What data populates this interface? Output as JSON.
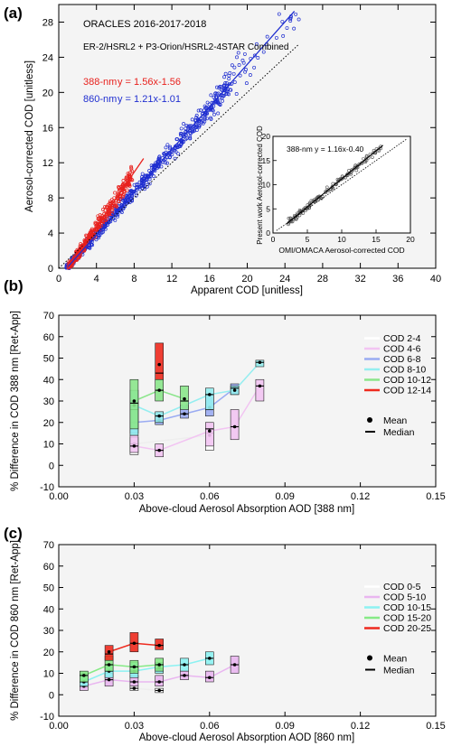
{
  "chart_data": [
    {
      "panel_label": "(a)",
      "type": "scatter",
      "title": "ORACLES 2016-2017-2018",
      "subtitle": "ER-2/HSRL2 + P3-Orion/HSRL2-4STAR Combined",
      "xlabel": "Apparent COD [unitless]",
      "ylabel": "Aerosol-corrected COD [unitless]",
      "xlim": [
        0,
        40
      ],
      "ylim": [
        0,
        30
      ],
      "xticks": [
        "0",
        "4",
        "8",
        "12",
        "16",
        "20",
        "24",
        "28",
        "32",
        "36",
        "40"
      ],
      "yticks": [
        "0",
        "4",
        "8",
        "12",
        "16",
        "20",
        "24",
        "28"
      ],
      "one_to_one_line": true,
      "series": [
        {
          "name": "388-nm",
          "fit_label": "y = 1.56x-1.56",
          "color": "#e8211d",
          "slope": 1.56,
          "intercept": -1.56,
          "x_range": [
            1,
            9
          ]
        },
        {
          "name": "860-nm",
          "fit_label": "y = 1.21x-1.01",
          "color": "#1f2ed0",
          "slope": 1.21,
          "intercept": -1.01,
          "x_range": [
            1,
            25
          ]
        }
      ],
      "inset": {
        "xlabel": "OMI/OMACA Aerosol-corrected COD",
        "ylabel": "Present work Aerosol-corrected COD",
        "fit_label": "388-nm  y = 1.16x-0.40",
        "slope": 1.16,
        "intercept": -0.4,
        "xlim": [
          0,
          20
        ],
        "ylim": [
          0,
          20
        ],
        "xticks": [
          "0",
          "5",
          "10",
          "15",
          "20"
        ],
        "yticks": [
          "0",
          "5",
          "10",
          "15",
          "20"
        ]
      }
    },
    {
      "panel_label": "(b)",
      "type": "box",
      "xlabel": "Above-cloud Aerosol Absorption AOD [388 nm]",
      "ylabel": "% Difference in COD 388 nm [Ret-App]",
      "xlim": [
        0,
        0.15
      ],
      "ylim": [
        -10,
        70
      ],
      "xticks": [
        "0.00",
        "0.03",
        "0.06",
        "0.09",
        "0.12",
        "0.15"
      ],
      "yticks": [
        "-10",
        "0",
        "10",
        "20",
        "30",
        "40",
        "50",
        "60",
        "70"
      ],
      "legend": [
        "COD 2-4",
        "COD 4-6",
        "COD 6-8",
        "COD 8-10",
        "COD 10-12",
        "COD 12-14"
      ],
      "legend_stats": [
        "Mean",
        "Median"
      ],
      "series": [
        {
          "name": "COD 2-4",
          "color": "#ffffff",
          "boxes": [
            {
              "x": 0.03,
              "lo": 5,
              "hi": 13,
              "mean": 10,
              "median": 10
            },
            {
              "x": 0.06,
              "lo": 7,
              "hi": 17,
              "mean": 14,
              "median": 15
            }
          ]
        },
        {
          "name": "COD 4-6",
          "color": "#f2c4f2",
          "boxes": [
            {
              "x": 0.03,
              "lo": 6,
              "hi": 14,
              "mean": 9,
              "median": 9
            },
            {
              "x": 0.04,
              "lo": 4,
              "hi": 10,
              "mean": 7,
              "median": 7
            },
            {
              "x": 0.06,
              "lo": 9,
              "hi": 20,
              "mean": 16,
              "median": 17
            },
            {
              "x": 0.07,
              "lo": 12,
              "hi": 26,
              "mean": 18,
              "median": 18
            },
            {
              "x": 0.08,
              "lo": 30,
              "hi": 40,
              "mean": 37,
              "median": 37
            }
          ]
        },
        {
          "name": "COD 6-8",
          "color": "#9aabf2",
          "boxes": [
            {
              "x": 0.03,
              "lo": 15,
              "hi": 30,
              "mean": 20,
              "median": 20
            },
            {
              "x": 0.04,
              "lo": 19,
              "hi": 24,
              "mean": 21,
              "median": 21
            },
            {
              "x": 0.05,
              "lo": 22,
              "hi": 28,
              "mean": 24,
              "median": 24
            },
            {
              "x": 0.06,
              "lo": 23,
              "hi": 33,
              "mean": 27,
              "median": 26
            },
            {
              "x": 0.07,
              "lo": 33,
              "hi": 38,
              "mean": 36,
              "median": 36
            }
          ]
        },
        {
          "name": "COD 8-10",
          "color": "#95eef0",
          "boxes": [
            {
              "x": 0.03,
              "lo": 14,
              "hi": 35,
              "mean": 28,
              "median": 26
            },
            {
              "x": 0.04,
              "lo": 20,
              "hi": 25,
              "mean": 23,
              "median": 23
            },
            {
              "x": 0.06,
              "lo": 26,
              "hi": 36,
              "mean": 33,
              "median": 33
            },
            {
              "x": 0.07,
              "lo": 33,
              "hi": 37,
              "mean": 35,
              "median": 36
            },
            {
              "x": 0.08,
              "lo": 46,
              "hi": 49,
              "mean": 48,
              "median": 48
            }
          ]
        },
        {
          "name": "COD 10-12",
          "color": "#8be58b",
          "boxes": [
            {
              "x": 0.03,
              "lo": 17,
              "hi": 40,
              "mean": 30,
              "median": 29
            },
            {
              "x": 0.04,
              "lo": 30,
              "hi": 40,
              "mean": 35,
              "median": 35
            },
            {
              "x": 0.05,
              "lo": 26,
              "hi": 37,
              "mean": 31,
              "median": 30
            }
          ]
        },
        {
          "name": "COD 12-14",
          "color": "#ee2a1e",
          "boxes": [
            {
              "x": 0.04,
              "lo": 40,
              "hi": 57,
              "mean": 47,
              "median": 43
            }
          ]
        }
      ],
      "legend_stats_symbols": [
        "dot",
        "dash"
      ]
    },
    {
      "panel_label": "(c)",
      "type": "box",
      "xlabel": "Above-cloud Aerosol Absorption AOD [860 nm]",
      "ylabel": "% Difference in COD 860 nm [Ret-App]",
      "xlim": [
        0,
        0.15
      ],
      "ylim": [
        -10,
        70
      ],
      "xticks": [
        "0.00",
        "0.03",
        "0.06",
        "0.09",
        "0.12",
        "0.15"
      ],
      "yticks": [
        "-10",
        "0",
        "10",
        "20",
        "30",
        "40",
        "50",
        "60",
        "70"
      ],
      "legend": [
        "COD 0-5",
        "COD 5-10",
        "COD 10-15",
        "COD 15-20",
        "COD 20-25"
      ],
      "legend_stats": [
        "Mean",
        "Median"
      ],
      "series": [
        {
          "name": "COD 0-5",
          "color": "#ffffff",
          "boxes": [
            {
              "x": 0.03,
              "lo": 2,
              "hi": 4,
              "mean": 3,
              "median": 3
            },
            {
              "x": 0.04,
              "lo": 1,
              "hi": 3,
              "mean": 2,
              "median": 2
            }
          ]
        },
        {
          "name": "COD 5-10",
          "color": "#e9b6f0",
          "boxes": [
            {
              "x": 0.01,
              "lo": 2,
              "hi": 7,
              "mean": 4,
              "median": 4
            },
            {
              "x": 0.02,
              "lo": 4,
              "hi": 10,
              "mean": 7,
              "median": 7
            },
            {
              "x": 0.03,
              "lo": 4,
              "hi": 9,
              "mean": 6,
              "median": 6
            },
            {
              "x": 0.04,
              "lo": 4,
              "hi": 9,
              "mean": 6,
              "median": 6
            },
            {
              "x": 0.05,
              "lo": 7,
              "hi": 11,
              "mean": 9,
              "median": 9
            },
            {
              "x": 0.06,
              "lo": 6,
              "hi": 11,
              "mean": 8,
              "median": 8
            },
            {
              "x": 0.07,
              "lo": 10,
              "hi": 18,
              "mean": 14,
              "median": 14
            }
          ]
        },
        {
          "name": "COD 10-15",
          "color": "#8cf2f2",
          "boxes": [
            {
              "x": 0.01,
              "lo": 4,
              "hi": 10,
              "mean": 6,
              "median": 6
            },
            {
              "x": 0.02,
              "lo": 8,
              "hi": 14,
              "mean": 11,
              "median": 11
            },
            {
              "x": 0.03,
              "lo": 8,
              "hi": 15,
              "mean": 11,
              "median": 11
            },
            {
              "x": 0.04,
              "lo": 10,
              "hi": 15,
              "mean": 13,
              "median": 12
            },
            {
              "x": 0.05,
              "lo": 11,
              "hi": 17,
              "mean": 14,
              "median": 14
            },
            {
              "x": 0.06,
              "lo": 14,
              "hi": 20,
              "mean": 17,
              "median": 17
            }
          ]
        },
        {
          "name": "COD 15-20",
          "color": "#86ea86",
          "boxes": [
            {
              "x": 0.01,
              "lo": 6,
              "hi": 11,
              "mean": 9,
              "median": 9
            },
            {
              "x": 0.02,
              "lo": 11,
              "hi": 18,
              "mean": 14,
              "median": 14
            },
            {
              "x": 0.03,
              "lo": 10,
              "hi": 16,
              "mean": 13,
              "median": 13
            },
            {
              "x": 0.04,
              "lo": 11,
              "hi": 17,
              "mean": 14,
              "median": 14
            }
          ]
        },
        {
          "name": "COD 20-25",
          "color": "#ee2a1e",
          "boxes": [
            {
              "x": 0.02,
              "lo": 16,
              "hi": 23,
              "mean": 20,
              "median": 19
            },
            {
              "x": 0.03,
              "lo": 20,
              "hi": 29,
              "mean": 24,
              "median": 24
            },
            {
              "x": 0.04,
              "lo": 21,
              "hi": 26,
              "mean": 23,
              "median": 23
            }
          ]
        }
      ]
    }
  ]
}
